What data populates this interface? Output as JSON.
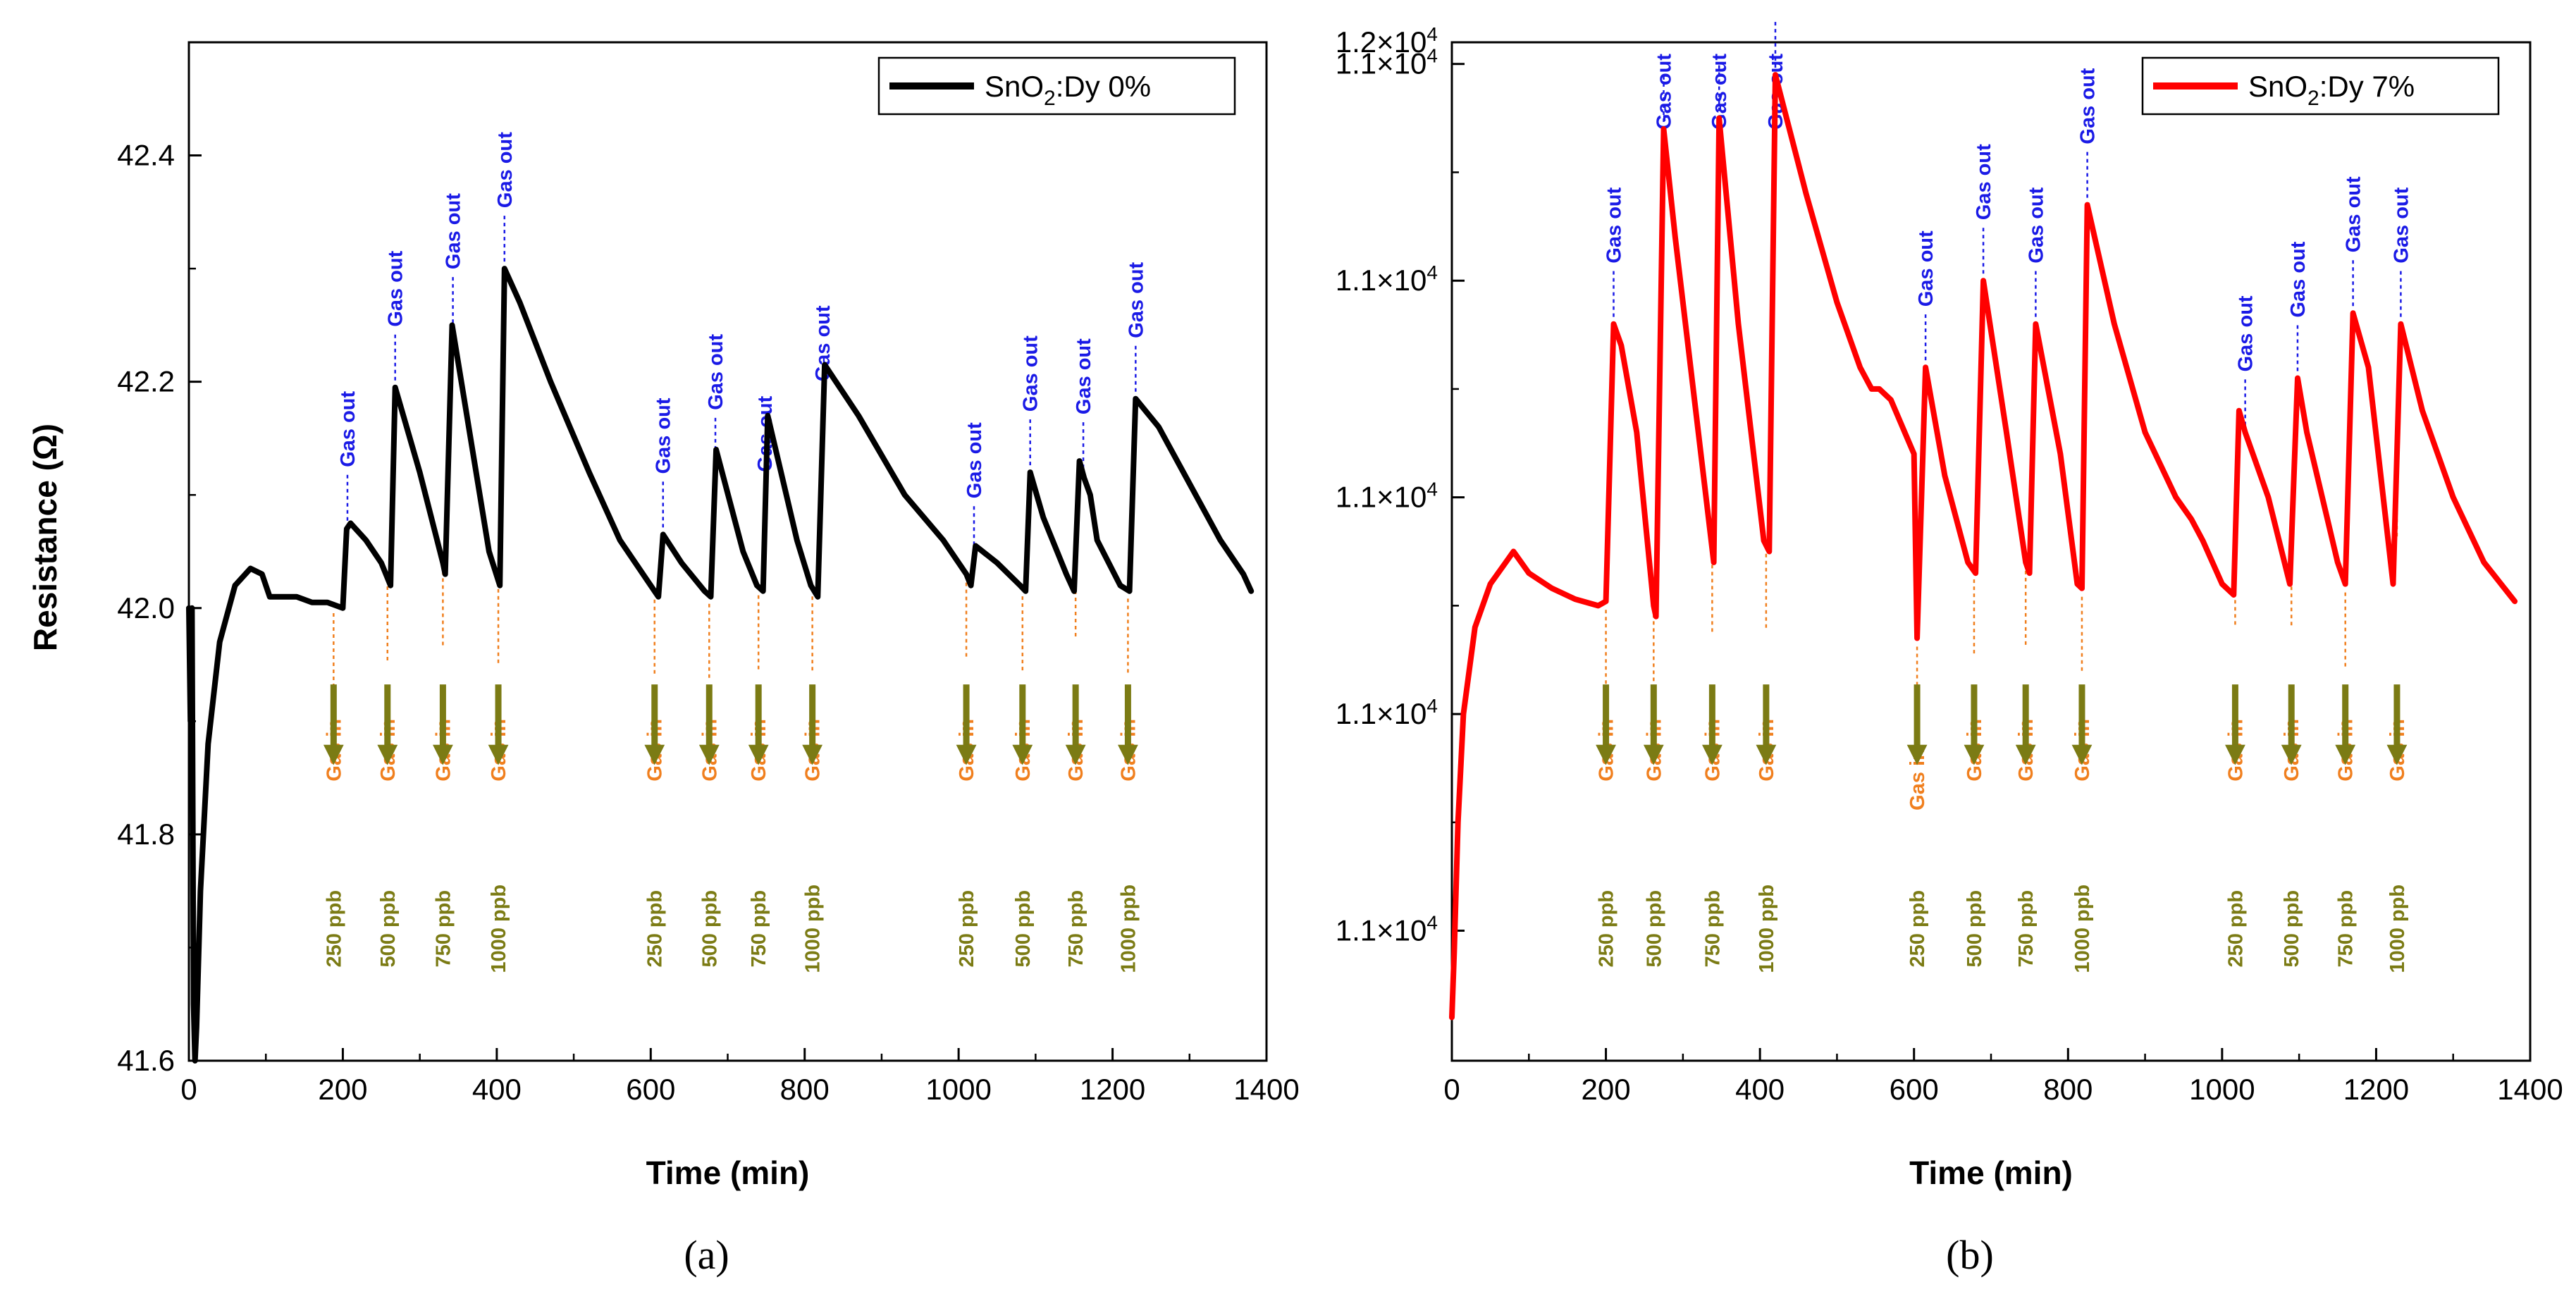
{
  "colors": {
    "in": "#f07f1e",
    "out": "#1a1ae6",
    "conc": "#7b7b14"
  },
  "chart_data": [
    {
      "panel_label": "(a)",
      "type": "line",
      "xlabel": "Time (min)",
      "ylabel": "Resistance (Ω)",
      "xlim": [
        0,
        1400
      ],
      "ylim": [
        41.6,
        42.5
      ],
      "xticks": [
        "0",
        "200",
        "400",
        "600",
        "800",
        "1000",
        "1200",
        "1400"
      ],
      "yticks": [
        "41.6",
        "41.8",
        "42.0",
        "42.2",
        "42.4"
      ],
      "legend": {
        "prefix": "SnO",
        "sub": "2",
        "suffix": ":Dy 0%",
        "color": "#000000",
        "placement": "top-right"
      },
      "series_color": "#000000",
      "series": {
        "name": "SnO2:Dy 0%",
        "x": [
          0,
          2,
          4,
          6,
          8,
          10,
          15,
          25,
          40,
          60,
          80,
          95,
          105,
          120,
          140,
          160,
          180,
          200,
          205,
          210,
          230,
          250,
          262,
          268,
          300,
          330,
          333,
          342,
          390,
          404,
          410,
          430,
          470,
          520,
          560,
          600,
          610,
          616,
          640,
          670,
          678,
          685,
          720,
          738,
          746,
          752,
          790,
          808,
          817,
          826,
          870,
          930,
          980,
          1010,
          1016,
          1022,
          1050,
          1080,
          1087,
          1093,
          1110,
          1140,
          1150,
          1157,
          1163,
          1171,
          1180,
          1210,
          1222,
          1230,
          1260,
          1300,
          1340,
          1370,
          1380
        ],
        "values": [
          42.0,
          41.9,
          42.0,
          41.65,
          41.6,
          41.63,
          41.75,
          41.88,
          41.97,
          42.02,
          42.035,
          42.03,
          42.01,
          42.01,
          42.01,
          42.005,
          42.005,
          42.0,
          42.07,
          42.075,
          42.06,
          42.04,
          42.02,
          42.195,
          42.12,
          42.04,
          42.03,
          42.25,
          42.05,
          42.02,
          42.3,
          42.27,
          42.2,
          42.12,
          42.06,
          42.02,
          42.01,
          42.065,
          42.04,
          42.015,
          42.01,
          42.14,
          42.05,
          42.02,
          42.015,
          42.17,
          42.06,
          42.02,
          42.01,
          42.215,
          42.17,
          42.1,
          42.06,
          42.03,
          42.02,
          42.055,
          42.04,
          42.02,
          42.015,
          42.12,
          42.08,
          42.03,
          42.015,
          42.13,
          42.115,
          42.1,
          42.06,
          42.02,
          42.015,
          42.185,
          42.16,
          42.11,
          42.06,
          42.03,
          42.015
        ]
      },
      "gas_in_label": "Gas in",
      "gas_out_label": "Gas out",
      "events": [
        {
          "t_in": 188,
          "t_out": 206,
          "conc": "250 ppb"
        },
        {
          "t_in": 258,
          "t_out": 268,
          "conc": "500 ppb"
        },
        {
          "t_in": 330,
          "t_out": 343,
          "conc": "750 ppb"
        },
        {
          "t_in": 402,
          "t_out": 410,
          "conc": "1000 ppb"
        },
        {
          "t_in": 605,
          "t_out": 616,
          "conc": "250 ppb"
        },
        {
          "t_in": 676,
          "t_out": 684,
          "conc": "500 ppb"
        },
        {
          "t_in": 740,
          "t_out": 748,
          "conc": "750 ppb"
        },
        {
          "t_in": 810,
          "t_out": 823,
          "conc": "1000 ppb"
        },
        {
          "t_in": 1010,
          "t_out": 1020,
          "conc": "250 ppb"
        },
        {
          "t_in": 1083,
          "t_out": 1093,
          "conc": "500 ppb"
        },
        {
          "t_in": 1152,
          "t_out": 1162,
          "conc": "750 ppb"
        },
        {
          "t_in": 1220,
          "t_out": 1230,
          "conc": "1000 ppb"
        }
      ]
    },
    {
      "panel_label": "(b)",
      "type": "line",
      "xlabel": "Time (min)",
      "ylabel": "",
      "xlim": [
        0,
        1400
      ],
      "ylim": [
        10740,
        11210
      ],
      "xticks": [
        "0",
        "200",
        "400",
        "600",
        "800",
        "1000",
        "1200",
        "1400"
      ],
      "yticks_value": [
        10800,
        10900,
        11000,
        11100,
        11200
      ],
      "ytick_label": {
        "mantissa": "1.1×10",
        "exponent": "4"
      },
      "ytick_top": {
        "mantissa": "1.2×10",
        "exponent": "4"
      },
      "legend": {
        "prefix": "SnO",
        "sub": "2",
        "suffix": ":Dy 7%",
        "color": "#ff0000",
        "placement": "top-right"
      },
      "series_color": "#ff0000",
      "series": {
        "name": "SnO2:Dy 7%",
        "x": [
          0,
          3,
          8,
          15,
          30,
          50,
          70,
          80,
          100,
          130,
          160,
          190,
          200,
          210,
          220,
          240,
          262,
          265,
          275,
          290,
          320,
          340,
          347,
          372,
          405,
          412,
          420,
          460,
          500,
          530,
          545,
          555,
          570,
          600,
          604,
          615,
          640,
          670,
          680,
          690,
          720,
          745,
          750,
          758,
          790,
          812,
          818,
          825,
          860,
          900,
          940,
          960,
          975,
          1000,
          1015,
          1022,
          1030,
          1060,
          1088,
          1098,
          1110,
          1150,
          1160,
          1170,
          1190,
          1222,
          1232,
          1260,
          1300,
          1340,
          1380
        ],
        "values": [
          10760,
          10790,
          10850,
          10900,
          10940,
          10960,
          10970,
          10975,
          10965,
          10958,
          10953,
          10950,
          10952,
          11080,
          11070,
          11030,
          10950,
          10945,
          11170,
          11120,
          11030,
          10970,
          11175,
          11080,
          10980,
          10975,
          11195,
          11140,
          11090,
          11060,
          11050,
          11050,
          11045,
          11020,
          10935,
          11060,
          11010,
          10970,
          10965,
          11100,
          11030,
          10970,
          10965,
          11080,
          11020,
          10960,
          10958,
          11135,
          11080,
          11030,
          11000,
          10990,
          10980,
          10960,
          10955,
          11040,
          11030,
          11000,
          10960,
          11055,
          11030,
          10970,
          10960,
          11085,
          11060,
          10960,
          11080,
          11040,
          11000,
          10970,
          10952
        ]
      },
      "gas_in_label": "Gas in",
      "gas_out_label": "Gas out",
      "events": [
        {
          "t_in": 200,
          "t_out": 210,
          "conc": "250 ppb"
        },
        {
          "t_in": 262,
          "t_out": 275,
          "conc": "500 ppb"
        },
        {
          "t_in": 338,
          "t_out": 347,
          "conc": "750 ppb"
        },
        {
          "t_in": 408,
          "t_out": 420,
          "conc": "1000 ppb"
        },
        {
          "t_in": 604,
          "t_out": 615,
          "conc": "250 ppb"
        },
        {
          "t_in": 678,
          "t_out": 690,
          "conc": "500 ppb"
        },
        {
          "t_in": 745,
          "t_out": 758,
          "conc": "750 ppb"
        },
        {
          "t_in": 818,
          "t_out": 825,
          "conc": "1000 ppb"
        },
        {
          "t_in": 1017,
          "t_out": 1030,
          "conc": "250 ppb"
        },
        {
          "t_in": 1090,
          "t_out": 1098,
          "conc": "500 ppb"
        },
        {
          "t_in": 1160,
          "t_out": 1170,
          "conc": "750 ppb"
        },
        {
          "t_in": 1227,
          "t_out": 1232,
          "conc": "1000 ppb"
        }
      ]
    }
  ]
}
